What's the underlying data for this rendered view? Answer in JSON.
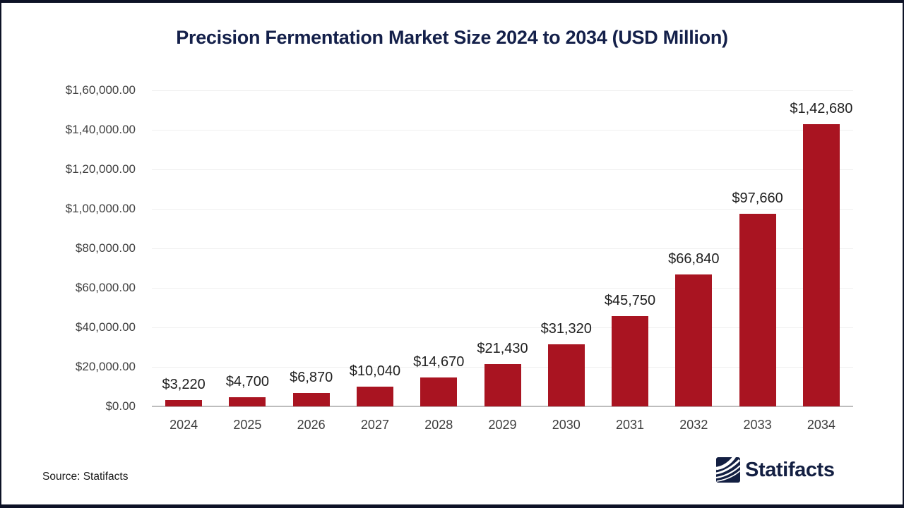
{
  "page": {
    "background": "#FFFFFF",
    "frame_border_color": "#0D1226"
  },
  "chart_data": {
    "type": "bar",
    "title": "Precision Fermentation Market Size 2024 to 2034 (USD Million)",
    "title_color": "#14204A",
    "xlabel": "",
    "ylabel": "",
    "categories": [
      "2024",
      "2025",
      "2026",
      "2027",
      "2028",
      "2029",
      "2030",
      "2031",
      "2032",
      "2033",
      "2034"
    ],
    "values": [
      3220,
      4700,
      6870,
      10040,
      14670,
      21430,
      31320,
      45750,
      66840,
      97660,
      142680
    ],
    "value_labels": [
      "$3,220",
      "$4,700",
      "$6,870",
      "$10,040",
      "$14,670",
      "$21,430",
      "$31,320",
      "$45,750",
      "$66,840",
      "$97,660",
      "$1,42,680"
    ],
    "ylim": [
      0,
      160000
    ],
    "yticks": [
      0,
      20000,
      40000,
      60000,
      80000,
      100000,
      120000,
      140000,
      160000
    ],
    "ytick_labels": [
      "$0.00",
      "$20,000.00",
      "$40,000.00",
      "$60,000.00",
      "$80,000.00",
      "$1,00,000.00",
      "$1,20,000.00",
      "$1,40,000.00",
      "$1,60,000.00"
    ],
    "bar_color": "#A91421",
    "grid": true,
    "gridline_color": "#F0F0F0",
    "axis_line_color": "#BDBDBD",
    "legend": false
  },
  "footer": {
    "source": "Source: Statifacts",
    "brand": "Statifacts",
    "brand_color": "#131F42"
  }
}
